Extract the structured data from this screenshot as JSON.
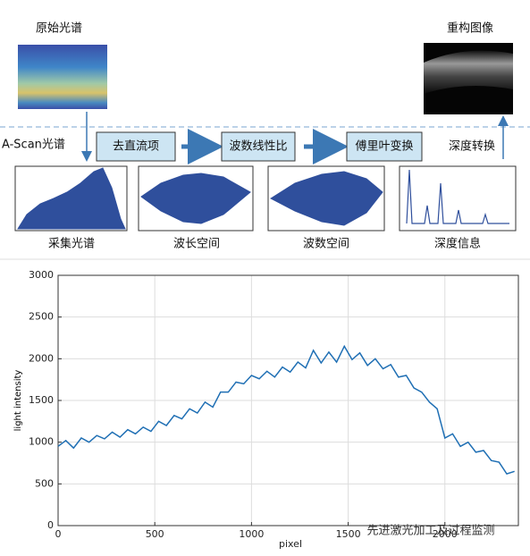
{
  "diagram": {
    "raw_spectrum": "原始光谱",
    "reconstructed_image": "重构图像",
    "ascan_label": "A-Scan光谱",
    "steps": [
      "去直流项",
      "波数线性比",
      "傅里叶变换",
      "深度转换"
    ],
    "captions": [
      "采集光谱",
      "波长空间",
      "波数空间",
      "深度信息"
    ],
    "watermark": "先进激光加工及过程监测"
  },
  "chart_data": {
    "type": "line",
    "x_label": "pixel",
    "y_label": "light intensity",
    "x": [
      0,
      40,
      80,
      120,
      160,
      200,
      240,
      280,
      320,
      360,
      400,
      440,
      480,
      520,
      560,
      600,
      640,
      680,
      720,
      760,
      800,
      840,
      880,
      920,
      960,
      1000,
      1040,
      1080,
      1120,
      1160,
      1200,
      1240,
      1280,
      1320,
      1360,
      1400,
      1440,
      1480,
      1520,
      1560,
      1600,
      1640,
      1680,
      1720,
      1760,
      1800,
      1840,
      1880,
      1920,
      1960,
      2000,
      2040,
      2080,
      2120,
      2160,
      2200,
      2240,
      2280,
      2320,
      2360
    ],
    "values": [
      950,
      1020,
      930,
      1050,
      1000,
      1080,
      1040,
      1120,
      1060,
      1150,
      1100,
      1180,
      1130,
      1250,
      1200,
      1320,
      1280,
      1400,
      1350,
      1480,
      1420,
      1600,
      1600,
      1720,
      1700,
      1800,
      1760,
      1850,
      1780,
      1900,
      1840,
      1960,
      1890,
      2100,
      1950,
      2080,
      1960,
      2150,
      1990,
      2070,
      1920,
      2000,
      1880,
      1930,
      1780,
      1800,
      1650,
      1600,
      1480,
      1400,
      1050,
      1100,
      950,
      1000,
      880,
      900,
      780,
      760,
      620,
      650
    ],
    "color": "#1f6fb4",
    "xlim": [
      0,
      2380
    ],
    "xticks": [
      0,
      500,
      1000,
      1500,
      2000
    ],
    "ylim": [
      0,
      3000
    ],
    "yticks": [
      0,
      500,
      1000,
      1500,
      2000,
      2500,
      3000
    ],
    "grid": true
  }
}
